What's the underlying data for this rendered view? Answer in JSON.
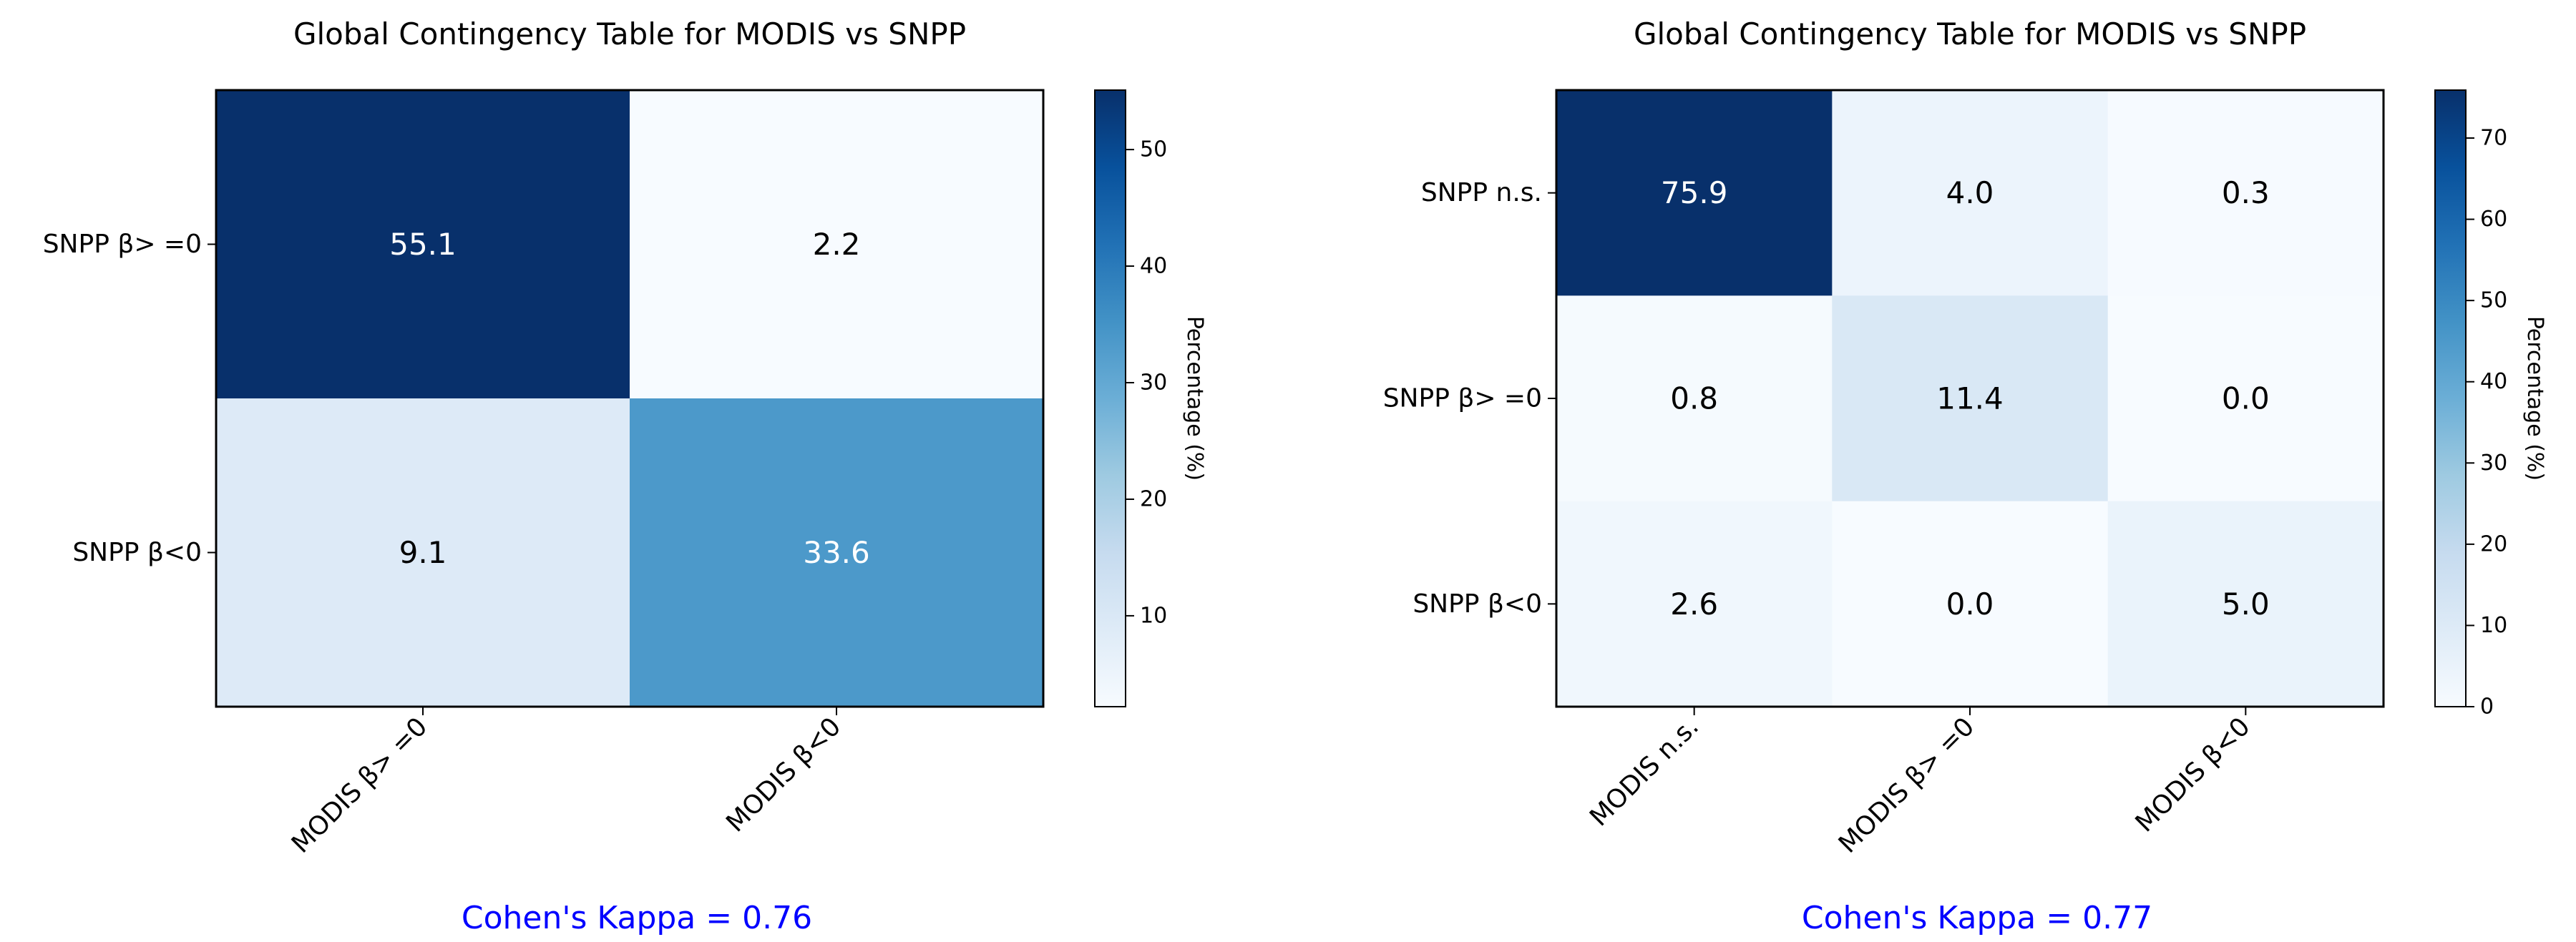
{
  "chart_data": [
    {
      "type": "heatmap",
      "title": "Global Contingency Table for MODIS vs SNPP",
      "x_categories": [
        "MODIS β> =0",
        "MODIS β<0"
      ],
      "y_categories": [
        "SNPP β> =0",
        "SNPP β<0"
      ],
      "values": [
        [
          55.1,
          2.2
        ],
        [
          9.1,
          33.6
        ]
      ],
      "colormap": "Blues",
      "color_range": [
        2.2,
        55.1
      ],
      "colorbar": {
        "label": "Percentage (%)",
        "ticks": [
          10,
          20,
          30,
          40,
          50
        ]
      },
      "annotation": "Cohen's Kappa = 0.76",
      "annotation_color": "#0000ff"
    },
    {
      "type": "heatmap",
      "title": "Global Contingency Table for MODIS vs SNPP",
      "x_categories": [
        "MODIS n.s.",
        "MODIS β> =0",
        "MODIS β<0"
      ],
      "y_categories": [
        "SNPP n.s.",
        "SNPP β> =0",
        "SNPP β<0"
      ],
      "values": [
        [
          75.9,
          4.0,
          0.3
        ],
        [
          0.8,
          11.4,
          0.0
        ],
        [
          2.6,
          0.0,
          5.0
        ]
      ],
      "colormap": "Blues",
      "color_range": [
        0.0,
        75.9
      ],
      "colorbar": {
        "label": "Percentage (%)",
        "ticks": [
          0,
          10,
          20,
          30,
          40,
          50,
          60,
          70
        ]
      },
      "annotation": "Cohen's Kappa = 0.77",
      "annotation_color": "#0000ff"
    }
  ]
}
